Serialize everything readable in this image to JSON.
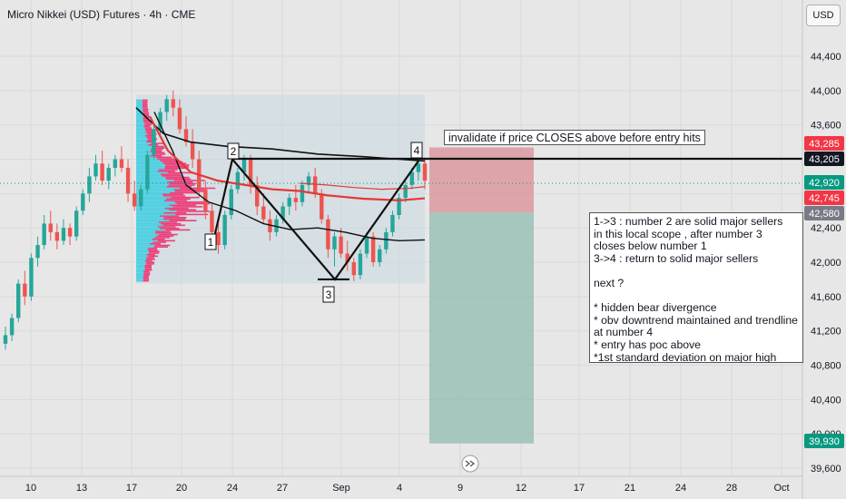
{
  "header": {
    "title": "Micro Nikkei (USD) Futures · 4h · CME",
    "currency": "USD"
  },
  "colors": {
    "up": "#26a69a",
    "down": "#ef5350",
    "ma_red": "#e53935",
    "line_black": "#111111",
    "stop_zone": "#d98f95",
    "target_zone": "#8fbcb0",
    "volume_cyan": "#4dd0e1",
    "volume_pink": "#ec407a"
  },
  "annotations": {
    "invalidate": "invalidate if price CLOSES above before entry hits",
    "notes": [
      "1->3 : number 2 are solid major sellers",
      "in this local scope , after number 3",
      "closes below number 1",
      "3->4 : return to solid major sellers",
      "",
      "next ?",
      "",
      "* hidden bear divergence",
      "* obv downtrend maintained and trendline",
      "at number 4",
      "* entry has poc above",
      "*1st standard deviation on major high"
    ],
    "pattern_points": [
      {
        "label": "1",
        "date": "Aug 22",
        "price": 42200
      },
      {
        "label": "2",
        "date": "Aug 24",
        "price": 43200
      },
      {
        "label": "3",
        "date": "Aug 30",
        "price": 41800
      },
      {
        "label": "4",
        "date": "Sep 5",
        "price": 43180
      }
    ]
  },
  "chart_data": {
    "type": "candlestick",
    "x_axis": {
      "ticks": [
        "10",
        "13",
        "17",
        "20",
        "24",
        "27",
        "Sep",
        "4",
        "9",
        "12",
        "17",
        "21",
        "24",
        "28",
        "Oct"
      ]
    },
    "y_axis": {
      "ticks": [
        44400,
        44000,
        43600,
        43200,
        42800,
        42400,
        42000,
        41600,
        41200,
        40800,
        40400,
        40000,
        39600
      ],
      "range": [
        39520,
        44650
      ]
    },
    "price_labels": [
      {
        "value": "43,285",
        "color": "#f23645"
      },
      {
        "value": "43,205",
        "color": "#131722"
      },
      {
        "value": "42,920",
        "color": "#089981"
      },
      {
        "value": "42,745",
        "color": "#f23645"
      },
      {
        "value": "42,580",
        "color": "#787b86"
      },
      {
        "value": "39,930",
        "color": "#089981"
      }
    ],
    "horizontal_line": 43205,
    "trade_zones": {
      "entry": 42580,
      "stop": 43285,
      "target": 39930
    },
    "pattern": [
      {
        "label": "1",
        "price": 42200
      },
      {
        "label": "2",
        "price": 43200
      },
      {
        "label": "3",
        "price": 41800
      },
      {
        "label": "4",
        "price": 43180
      }
    ],
    "candles_ohlc": [
      [
        41050,
        41250,
        40980,
        41150
      ],
      [
        41150,
        41400,
        41080,
        41350
      ],
      [
        41350,
        41800,
        41300,
        41750
      ],
      [
        41750,
        41900,
        41500,
        41600
      ],
      [
        41600,
        42100,
        41550,
        42050
      ],
      [
        42050,
        42300,
        41950,
        42200
      ],
      [
        42200,
        42550,
        42150,
        42450
      ],
      [
        42450,
        42600,
        42250,
        42350
      ],
      [
        42350,
        42450,
        42150,
        42250
      ],
      [
        42250,
        42500,
        42200,
        42400
      ],
      [
        42400,
        42450,
        42200,
        42300
      ],
      [
        42300,
        42650,
        42250,
        42600
      ],
      [
        42600,
        42850,
        42550,
        42800
      ],
      [
        42800,
        43100,
        42700,
        43000
      ],
      [
        43000,
        43250,
        42950,
        43150
      ],
      [
        43150,
        43300,
        42900,
        42950
      ],
      [
        42950,
        43150,
        42850,
        43100
      ],
      [
        43100,
        43250,
        43000,
        43200
      ],
      [
        43200,
        43350,
        43050,
        43100
      ],
      [
        43100,
        43200,
        42700,
        42800
      ],
      [
        42800,
        42950,
        42600,
        42650
      ],
      [
        42650,
        42900,
        42600,
        42850
      ],
      [
        42850,
        43300,
        42800,
        43250
      ],
      [
        43250,
        43600,
        43200,
        43550
      ],
      [
        43550,
        43800,
        43450,
        43750
      ],
      [
        43750,
        43950,
        43650,
        43900
      ],
      [
        43900,
        44000,
        43700,
        43800
      ],
      [
        43800,
        43900,
        43500,
        43550
      ],
      [
        43550,
        43700,
        43350,
        43400
      ],
      [
        43400,
        43550,
        43100,
        43200
      ],
      [
        43200,
        43300,
        42750,
        42850
      ],
      [
        42850,
        42950,
        42500,
        42600
      ],
      [
        42600,
        42700,
        42200,
        42350
      ],
      [
        42350,
        42450,
        42100,
        42200
      ],
      [
        42200,
        42600,
        42150,
        42550
      ],
      [
        42550,
        42900,
        42500,
        42850
      ],
      [
        42850,
        43100,
        42800,
        43050
      ],
      [
        43050,
        43250,
        42950,
        43200
      ],
      [
        43200,
        43250,
        42800,
        42900
      ],
      [
        42900,
        43000,
        42550,
        42650
      ],
      [
        42650,
        42800,
        42450,
        42500
      ],
      [
        42500,
        42600,
        42250,
        42350
      ],
      [
        42350,
        42550,
        42300,
        42500
      ],
      [
        42500,
        42700,
        42450,
        42650
      ],
      [
        42650,
        42800,
        42550,
        42750
      ],
      [
        42750,
        42900,
        42600,
        42700
      ],
      [
        42700,
        42950,
        42650,
        42900
      ],
      [
        42900,
        43050,
        42800,
        43000
      ],
      [
        43000,
        43100,
        42750,
        42800
      ],
      [
        42800,
        42850,
        42450,
        42500
      ],
      [
        42500,
        42550,
        42050,
        42150
      ],
      [
        42150,
        42350,
        41950,
        42300
      ],
      [
        42300,
        42400,
        42050,
        42100
      ],
      [
        42100,
        42250,
        41900,
        42000
      ],
      [
        42000,
        42050,
        41780,
        41850
      ],
      [
        41850,
        42150,
        41800,
        42100
      ],
      [
        42100,
        42350,
        42050,
        42300
      ],
      [
        42300,
        42350,
        41950,
        42000
      ],
      [
        42000,
        42200,
        41950,
        42150
      ],
      [
        42150,
        42400,
        42100,
        42350
      ],
      [
        42350,
        42600,
        42300,
        42550
      ],
      [
        42550,
        42800,
        42500,
        42750
      ],
      [
        42750,
        42950,
        42700,
        42900
      ],
      [
        42900,
        43100,
        42850,
        43050
      ],
      [
        43050,
        43200,
        42950,
        43150
      ],
      [
        43150,
        43220,
        42850,
        42950
      ]
    ]
  }
}
